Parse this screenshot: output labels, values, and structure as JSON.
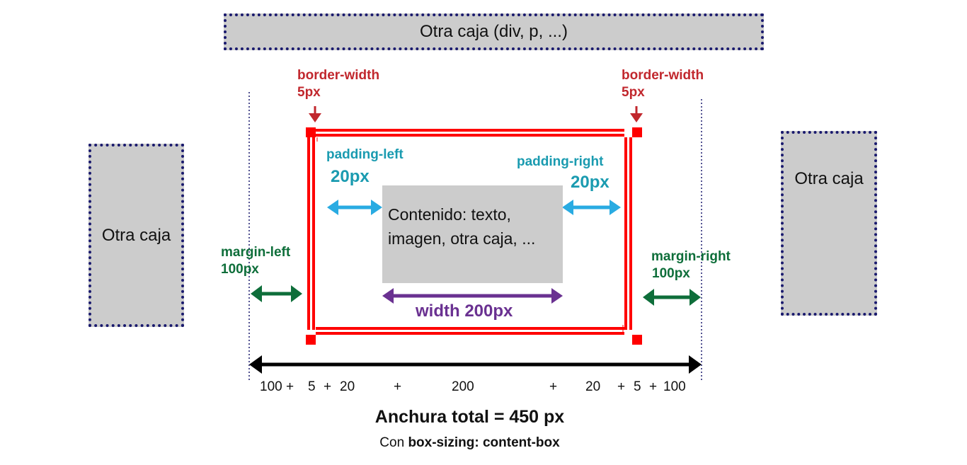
{
  "top_box": {
    "label": "Otra caja (div, p, ...)"
  },
  "left_box": {
    "label": "Otra caja"
  },
  "right_box": {
    "label": "Otra caja"
  },
  "content": {
    "line1": "Contenido: texto,",
    "line2": "imagen, otra caja, ..."
  },
  "border_width_left": {
    "name": "border-width",
    "value": "5px"
  },
  "border_width_right": {
    "name": "border-width",
    "value": "5px"
  },
  "padding_left": {
    "name": "padding-left",
    "value": "20px"
  },
  "padding_right": {
    "name": "padding-right",
    "value": "20px"
  },
  "margin_left": {
    "name": "margin-left",
    "value": "100px"
  },
  "margin_right": {
    "name": "margin-right",
    "value": "100px"
  },
  "width_label": "width 200px",
  "sum": {
    "t1": "100 +",
    "t2": "5",
    "t3": "+",
    "t4": "20",
    "t5": "+",
    "t6": "200",
    "t7": "+",
    "t8": "20",
    "t9": "+",
    "t10": "5",
    "t11": "+",
    "t12": "100"
  },
  "total": "Anchura total = 450 px",
  "note_prefix": "Con ",
  "note_bold": "box-sizing: content-box",
  "colors": {
    "border_red": "#ff0000",
    "label_red": "#c1272d",
    "padding_blue": "#29abe2",
    "padding_text": "#1a9bb0",
    "margin_green": "#0e6e3a",
    "width_purple": "#6a3191",
    "box_gray": "#cccccc",
    "box_outline": "#1a1a6e"
  }
}
